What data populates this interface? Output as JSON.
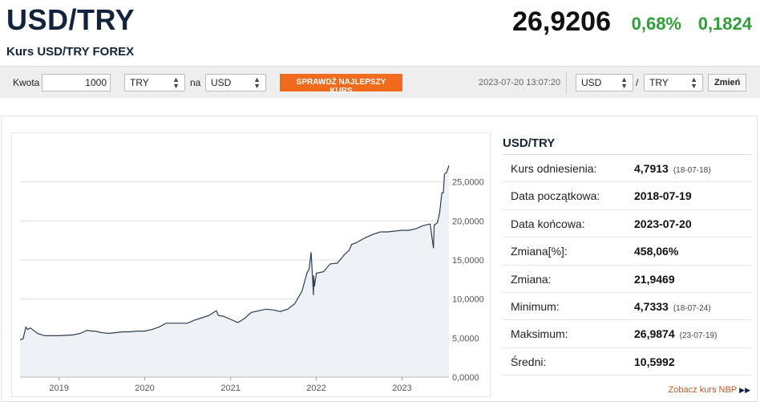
{
  "header": {
    "pair": "USD/TRY",
    "subtitle": "Kurs USD/TRY FOREX",
    "price": "26,9206",
    "change_pct": "0,68%",
    "change_abs": "0,1824"
  },
  "toolbar": {
    "amount_label": "Kwota",
    "amount_value": "1000",
    "from_currency": "TRY",
    "to_label": "na",
    "to_currency": "USD",
    "best_rate_button": "SPRAWDŹ NAJLEPSZY KURS",
    "timestamp": "2023-07-20 13:07:20",
    "pair_base": "USD",
    "separator": "/",
    "pair_quote": "TRY",
    "change_button": "Zmień"
  },
  "stats": {
    "title": "USD/TRY",
    "rows": [
      {
        "label": "Kurs odniesienia:",
        "value": "4,7913",
        "sub": "(18-07-18)"
      },
      {
        "label": "Data początkowa:",
        "value": "2018-07-19",
        "sub": ""
      },
      {
        "label": "Data końcowa:",
        "value": "2023-07-20",
        "sub": ""
      },
      {
        "label": "Zmiana[%]:",
        "value": "458,06%",
        "sub": ""
      },
      {
        "label": "Zmiana:",
        "value": "21,9469",
        "sub": ""
      },
      {
        "label": "Minimum:",
        "value": "4,7333",
        "sub": "(18-07-24)"
      },
      {
        "label": "Maksimum:",
        "value": "26,9874",
        "sub": "(23-07-19)"
      },
      {
        "label": "Średni:",
        "value": "10,5992",
        "sub": ""
      }
    ],
    "nbp_link": "Zobacz kurs NBP"
  },
  "colors": {
    "positive": "#2e9e3a",
    "accent_orange": "#f26b1d",
    "navy": "#12233d",
    "line": "#2c3e50",
    "area": "#eef1f5",
    "grid": "#dcdcdc"
  },
  "chart_data": {
    "type": "area",
    "title": "",
    "xlabel": "",
    "ylabel": "",
    "x_ticks": [
      "2019",
      "2020",
      "2021",
      "2022",
      "2023"
    ],
    "y_ticks": [
      "0,0000",
      "5,0000",
      "10,0000",
      "15,0000",
      "20,0000",
      "25,0000"
    ],
    "ylim": [
      0,
      30
    ],
    "xlim": [
      "2018-07-19",
      "2023-07-20"
    ],
    "grid": true,
    "y_axis_side": "right",
    "x": [
      "2018-07-19",
      "2018-08-01",
      "2018-08-13",
      "2018-08-20",
      "2018-09-01",
      "2018-10-01",
      "2018-11-01",
      "2018-12-01",
      "2019-01-01",
      "2019-03-01",
      "2019-04-01",
      "2019-05-01",
      "2019-05-20",
      "2019-06-01",
      "2019-07-01",
      "2019-08-01",
      "2019-09-01",
      "2019-10-01",
      "2019-11-01",
      "2019-12-01",
      "2020-01-01",
      "2020-02-01",
      "2020-03-01",
      "2020-04-01",
      "2020-05-01",
      "2020-06-01",
      "2020-07-01",
      "2020-08-01",
      "2020-09-01",
      "2020-10-01",
      "2020-11-01",
      "2020-11-10",
      "2020-12-01",
      "2021-01-01",
      "2021-02-01",
      "2021-03-01",
      "2021-03-22",
      "2021-04-01",
      "2021-05-01",
      "2021-06-01",
      "2021-07-01",
      "2021-08-01",
      "2021-09-01",
      "2021-10-01",
      "2021-11-01",
      "2021-11-23",
      "2021-12-01",
      "2021-12-10",
      "2021-12-20",
      "2021-12-21",
      "2021-12-24",
      "2022-01-01",
      "2022-02-01",
      "2022-03-01",
      "2022-04-01",
      "2022-05-01",
      "2022-05-20",
      "2022-06-01",
      "2022-06-20",
      "2022-07-01",
      "2022-08-01",
      "2022-09-01",
      "2022-10-01",
      "2022-11-01",
      "2022-12-01",
      "2023-01-01",
      "2023-02-01",
      "2023-03-01",
      "2023-04-01",
      "2023-05-01",
      "2023-05-15",
      "2023-05-18",
      "2023-05-25",
      "2023-06-01",
      "2023-06-10",
      "2023-06-20",
      "2023-06-26",
      "2023-07-01",
      "2023-07-10",
      "2023-07-19",
      "2023-07-20"
    ],
    "values": [
      4.79,
      4.9,
      6.4,
      6.1,
      6.3,
      5.6,
      5.3,
      5.3,
      5.3,
      5.4,
      5.6,
      6.0,
      5.9,
      5.9,
      5.7,
      5.6,
      5.7,
      5.8,
      5.8,
      5.9,
      5.9,
      6.1,
      6.4,
      6.9,
      6.9,
      6.9,
      6.9,
      7.3,
      7.6,
      7.9,
      8.5,
      7.9,
      7.8,
      7.4,
      7.0,
      7.5,
      8.1,
      8.3,
      8.5,
      8.7,
      8.6,
      8.4,
      8.7,
      9.4,
      11.0,
      13.4,
      13.8,
      16.0,
      10.5,
      13.0,
      11.6,
      13.3,
      13.5,
      14.5,
      14.6,
      15.7,
      16.2,
      17.0,
      17.2,
      17.4,
      17.9,
      18.3,
      18.6,
      18.6,
      18.7,
      18.8,
      18.8,
      19.0,
      19.4,
      19.6,
      16.5,
      19.5,
      19.6,
      19.8,
      21.0,
      23.6,
      23.6,
      26.0,
      26.2,
      26.99,
      26.92
    ]
  }
}
